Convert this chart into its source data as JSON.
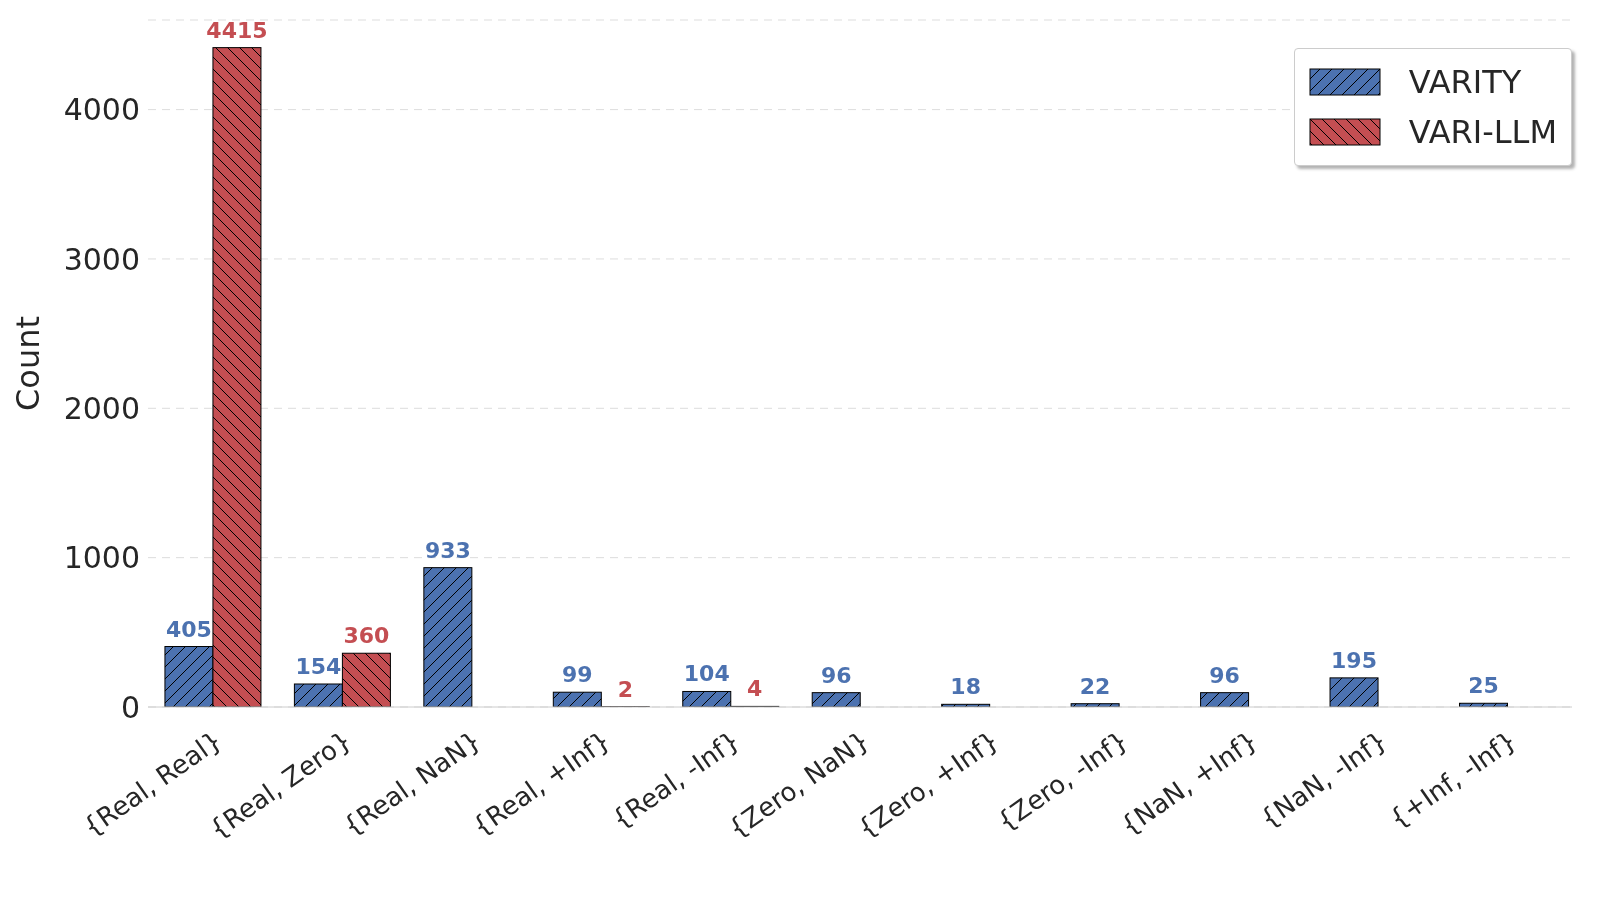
{
  "chart_data": {
    "type": "bar",
    "ylabel": "Count",
    "categories": [
      "{Real, Real}",
      "{Real, Zero}",
      "{Real, NaN}",
      "{Real, +Inf}",
      "{Real, -Inf}",
      "{Zero, NaN}",
      "{Zero, +Inf}",
      "{Zero, -Inf}",
      "{NaN, +Inf}",
      "{NaN, -Inf}",
      "{+Inf, -Inf}"
    ],
    "series": [
      {
        "name": "VARITY",
        "color": "#4c72b0",
        "values": [
          405,
          154,
          933,
          99,
          104,
          96,
          18,
          22,
          96,
          195,
          25
        ]
      },
      {
        "name": "VARI-LLM",
        "color": "#c44e52",
        "values": [
          4415,
          360,
          null,
          2,
          4,
          null,
          null,
          null,
          null,
          null,
          null
        ]
      }
    ],
    "ylim": [
      0,
      4600
    ],
    "yticks": [
      0,
      1000,
      2000,
      3000,
      4000
    ],
    "grid": "y",
    "legend": "top right",
    "data_labels": true
  }
}
